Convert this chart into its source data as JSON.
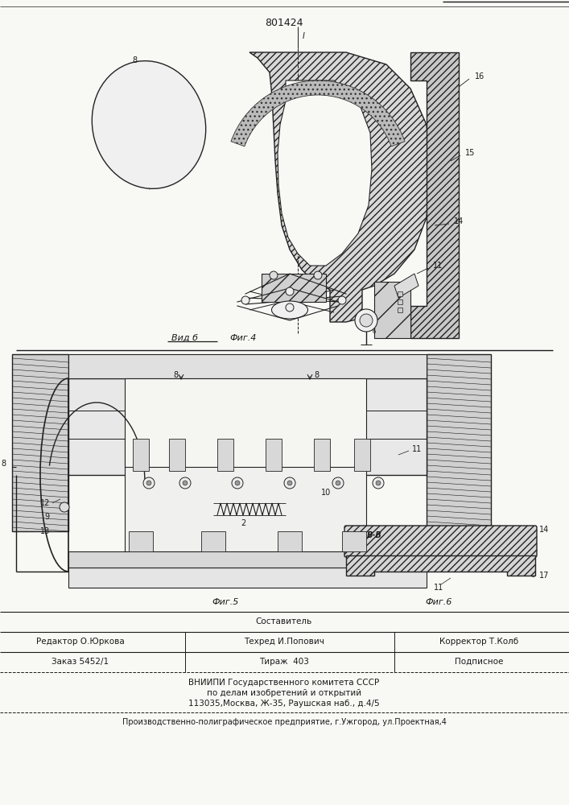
{
  "patent_number": "801424",
  "bg_color": "#f8f8f5",
  "text_color": "#1a1a1a",
  "fig4_label_vidb": "Вид б",
  "fig4_label": "Фиг.4",
  "fig5_label": "Фиг.5",
  "fig6_label": "Фиг.6",
  "view_label": "В-В",
  "editor_line": "Редактор О.Юркова",
  "techred_line": "Техред И.Попович",
  "corrector_line": "Корректор Т.Колб",
  "sostavitel_line": "Составитель",
  "zakaz_line": "Заказ 5452/1",
  "tirazh_line": "Тираж  403",
  "podpisnoe_line": "Подписное",
  "vniiipi_line": "ВНИИПИ Государственного комитета СССР",
  "vniiipi_line2": "по делам изобретений и открытий",
  "vniiipi_line3": "113035,Москва, Ж-35, Раушская наб., д.4/5",
  "factory_line": "Производственно-полиграфическое предприятие, г.Ужгород, ул.Проектная,4"
}
